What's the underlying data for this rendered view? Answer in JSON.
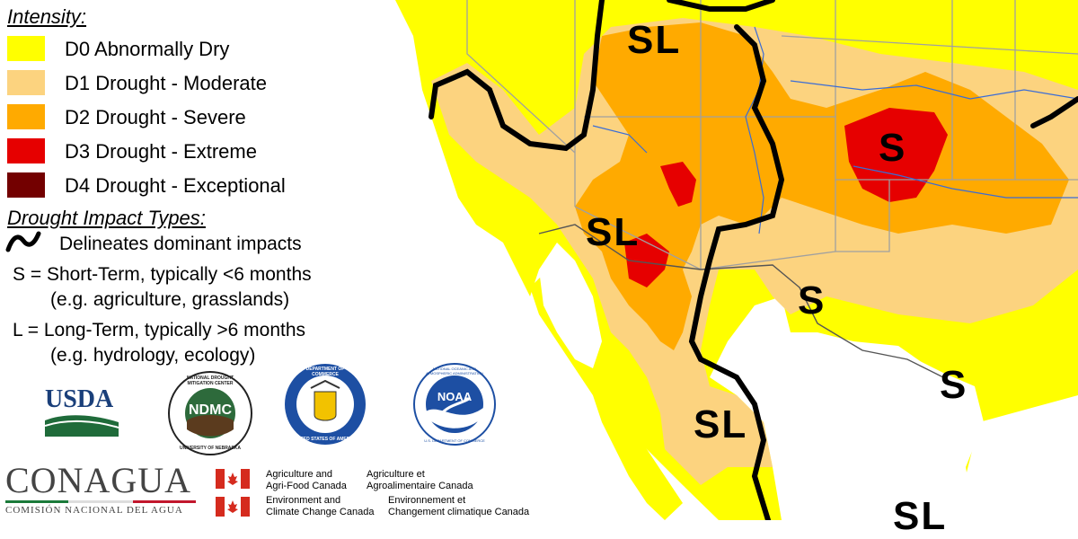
{
  "legend": {
    "intensity_title": "Intensity:",
    "categories": [
      {
        "label": "D0 Abnormally Dry",
        "color": "#ffff00"
      },
      {
        "label": "D1 Drought - Moderate",
        "color": "#fcd37f"
      },
      {
        "label": "D2 Drought - Severe",
        "color": "#ffaa00"
      },
      {
        "label": "D3 Drought - Extreme",
        "color": "#e60000"
      },
      {
        "label": "D4 Drought - Exceptional",
        "color": "#730000"
      }
    ],
    "impact_title": "Drought Impact Types:",
    "impact_line": "Delineates dominant impacts",
    "short_term": "S = Short-Term, typically <6 months",
    "short_term_examples": "(e.g. agriculture, grasslands)",
    "long_term": "L = Long-Term, typically >6 months",
    "long_term_examples": "(e.g. hydrology, ecology)"
  },
  "logos": {
    "usda": "USDA",
    "ndmc_center": "NDMC",
    "ndmc_ring": "NATIONAL DROUGHT MITIGATION CENTER",
    "ndmc_ring_bottom": "UNIVERSITY OF NEBRASKA",
    "commerce_ring": "DEPARTMENT OF COMMERCE",
    "commerce_ring_bottom": "UNITED STATES OF AMERICA",
    "noaa_center": "NOAA",
    "noaa_ring": "NATIONAL OCEANIC AND ATMOSPHERIC ADMINISTRATION",
    "noaa_ring_bottom": "U.S. DEPARTMENT OF COMMERCE",
    "conagua": "CONAGUA",
    "conagua_sub": "COMISIÓN NACIONAL DEL AGUA",
    "agri_en_1": "Agriculture and",
    "agri_en_2": "Agri-Food Canada",
    "agri_fr_1": "Agriculture et",
    "agri_fr_2": "Agroalimentaire Canada",
    "env_en_1": "Environment and",
    "env_en_2": "Climate Change Canada",
    "env_fr_1": "Environnement et",
    "env_fr_2": "Changement climatique Canada"
  },
  "map_labels": [
    "SL",
    "S",
    "SL",
    "S",
    "S",
    "SL",
    "SL"
  ]
}
